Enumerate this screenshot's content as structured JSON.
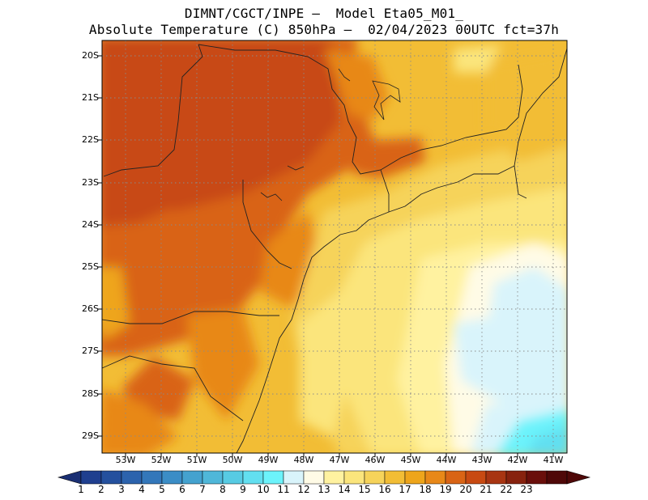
{
  "title_line1": "DIMNT/CGCT/INPE –  Model Eta05_M01_",
  "title_line2": "Absolute Temperature (C) 850hPa –  02/04/2023 00UTC fct=37h",
  "y_ticks": [
    "20S",
    "21S",
    "22S",
    "23S",
    "24S",
    "25S",
    "26S",
    "27S",
    "28S",
    "29S"
  ],
  "x_ticks": [
    "53W",
    "52W",
    "51W",
    "50W",
    "49W",
    "48W",
    "47W",
    "46W",
    "45W",
    "44W",
    "43W",
    "42W",
    "41W"
  ],
  "colorbar": {
    "labels": [
      "1",
      "2",
      "3",
      "4",
      "5",
      "6",
      "7",
      "8",
      "9",
      "10",
      "11",
      "12",
      "13",
      "14",
      "15",
      "16",
      "17",
      "18",
      "19",
      "20",
      "21",
      "22",
      "23"
    ],
    "colors": [
      "#1f3f8f",
      "#24509e",
      "#2c63ad",
      "#3377ba",
      "#3b8dc6",
      "#44a2cf",
      "#4fb7d9",
      "#57cbe3",
      "#62dff0",
      "#6cf3fb",
      "#d9f4fb",
      "#fffbe6",
      "#fff2a0",
      "#fbe57c",
      "#f6d35a",
      "#f2bd35",
      "#eea51b",
      "#e88818",
      "#d96415",
      "#c84a12",
      "#a83512",
      "#87220e",
      "#6a0f0b"
    ],
    "left_tip": "#1a2f73",
    "right_tip": "#4f0808"
  },
  "field": {
    "lat_range": [
      -29.4,
      -19.7
    ],
    "lon_range": [
      -53.8,
      -40.8
    ]
  }
}
